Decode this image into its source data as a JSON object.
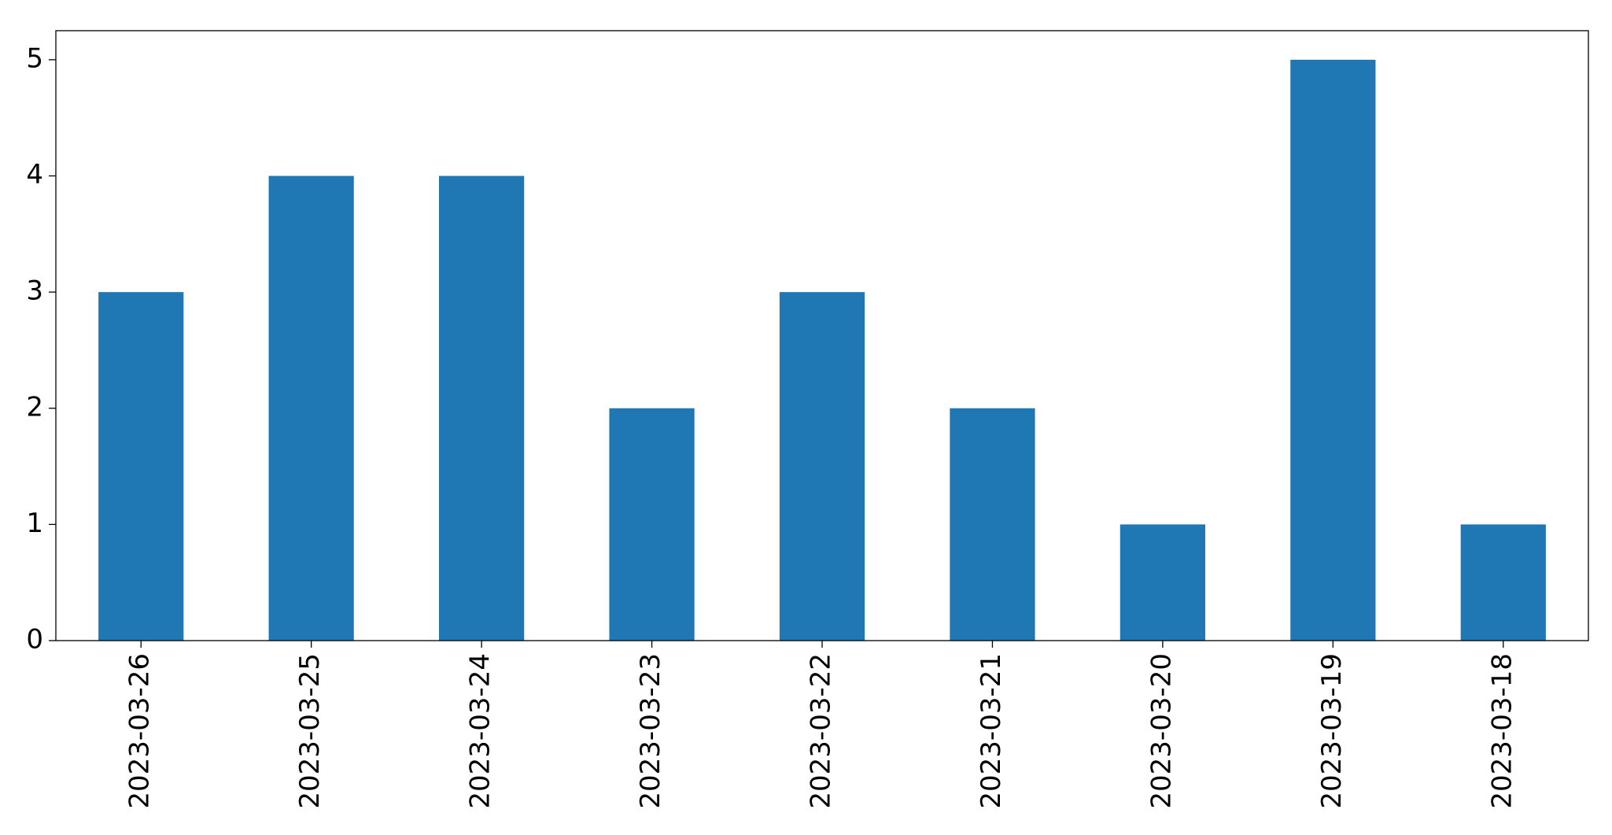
{
  "chart_data": {
    "type": "bar",
    "categories": [
      "2023-03-26",
      "2023-03-25",
      "2023-03-24",
      "2023-03-23",
      "2023-03-22",
      "2023-03-21",
      "2023-03-20",
      "2023-03-19",
      "2023-03-18"
    ],
    "values": [
      3,
      4,
      4,
      2,
      3,
      2,
      1,
      5,
      1
    ],
    "color": "#1f77b4",
    "ylim": [
      0,
      5.25
    ],
    "yticks": [
      0,
      1,
      2,
      3,
      4,
      5
    ],
    "grid": false
  }
}
